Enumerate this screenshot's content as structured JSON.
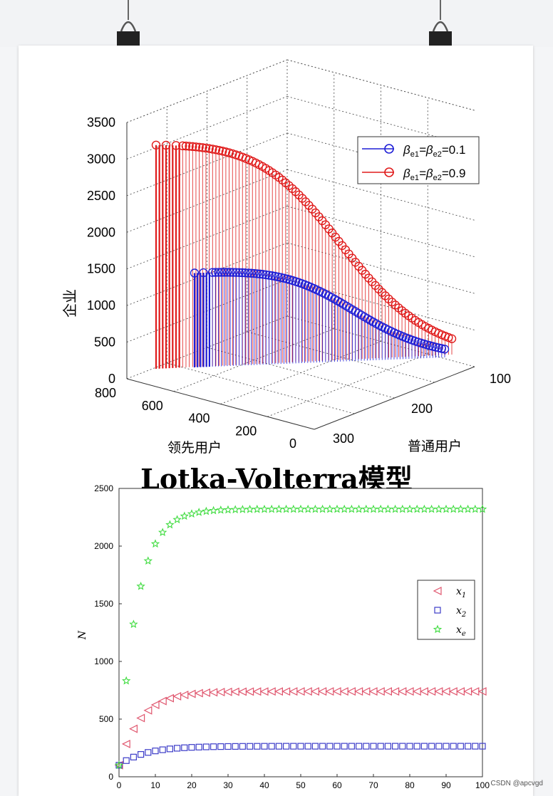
{
  "heading": "Lotka-Volterra模型",
  "watermark": "CSDN @apcvgd",
  "chart_data": [
    {
      "type": "stem3d",
      "zlabel": "企业",
      "xlabel": "领先用户",
      "ylabel": "普通用户",
      "zticks": [
        "0",
        "500",
        "1000",
        "1500",
        "2000",
        "2500",
        "3000",
        "3500"
      ],
      "xticks": [
        "800",
        "600",
        "400",
        "200",
        "0"
      ],
      "yticks": [
        "300",
        "200",
        "100"
      ],
      "zlim": [
        0,
        3500
      ],
      "legend_position": "top-right",
      "legend": [
        {
          "label_main": "β",
          "label_sub1": "e1",
          "label_mid": "=β",
          "label_sub2": "e2",
          "label_val": "=0.1",
          "color": "#1f1fd6"
        },
        {
          "label_main": "β",
          "label_sub1": "e1",
          "label_mid": "=β",
          "label_sub2": "e2",
          "label_val": "=0.9",
          "color": "#e01b1b"
        }
      ],
      "series": [
        {
          "color": "#1f1fd6",
          "x_start": 560,
          "x_end": 30,
          "z_start": 1460,
          "z_end": 270,
          "z_peak": 1500
        },
        {
          "color": "#e01b1b",
          "x_start": 800,
          "x_end": 30,
          "z_start": 3200,
          "z_end": 300,
          "z_peak": 3200
        }
      ]
    },
    {
      "type": "scatter",
      "xlabel": "",
      "ylabel": "N",
      "xlim": [
        0,
        100
      ],
      "ylim": [
        0,
        2500
      ],
      "xticks": [
        0,
        10,
        20,
        30,
        40,
        50,
        60,
        70,
        80,
        90,
        100
      ],
      "yticks": [
        0,
        500,
        1000,
        1500,
        2000,
        2500
      ],
      "legend_position": "right",
      "series": [
        {
          "name": "x",
          "sub": "1",
          "marker": "triangle-left",
          "color": "#e0566e",
          "x0": 0,
          "y0": 100,
          "plateau": 740,
          "rate": 0.17
        },
        {
          "name": "x",
          "sub": "2",
          "marker": "square",
          "color": "#3c3cc8",
          "x0": 0,
          "y0": 100,
          "plateau": 265,
          "rate": 0.14
        },
        {
          "name": "x",
          "sub": "e",
          "marker": "star",
          "color": "#3fdc3f",
          "x0": 0,
          "y0": 100,
          "plateau": 2320,
          "rate": 0.2
        }
      ]
    }
  ]
}
